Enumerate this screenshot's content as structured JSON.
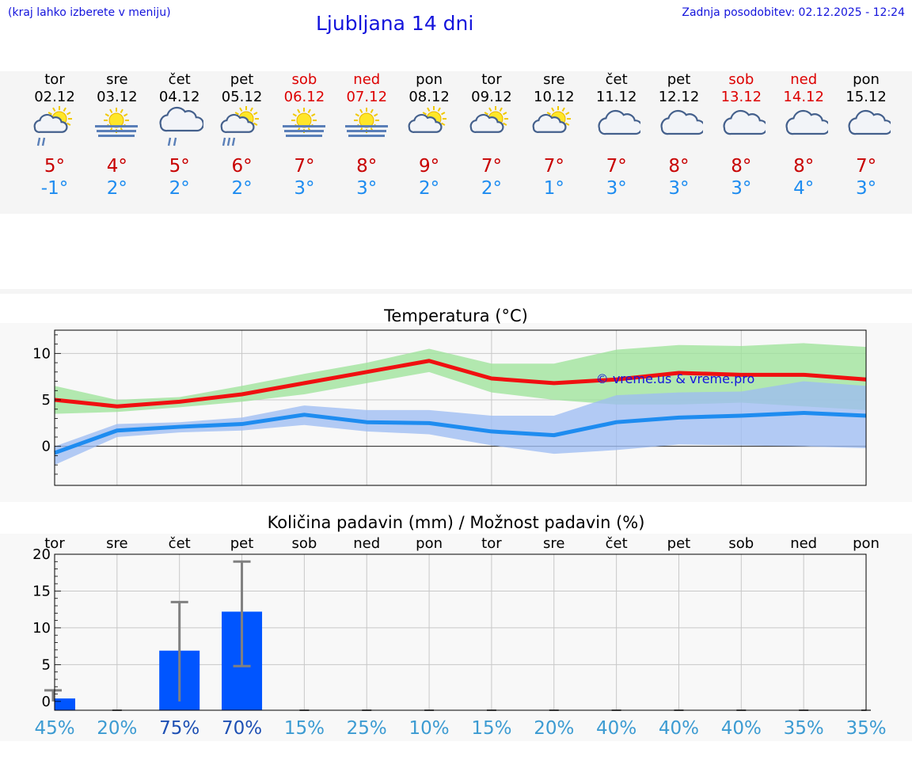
{
  "header": {
    "hint": "(kraj lahko izberete v meniju)",
    "title": "Ljubljana 14 dni",
    "updated": "Zadnja posodobitev: 02.12.2025 - 12:24"
  },
  "forecast": [
    {
      "day": "tor",
      "date": "02.12",
      "tmax": "5°",
      "tmin": "-1°",
      "icon": "sun-cloud-rain-icon",
      "weekend": false
    },
    {
      "day": "sre",
      "date": "03.12",
      "tmax": "4°",
      "tmin": "2°",
      "icon": "sun-fog-icon",
      "weekend": false
    },
    {
      "day": "čet",
      "date": "04.12",
      "tmax": "5°",
      "tmin": "2°",
      "icon": "cloud-rain-icon",
      "weekend": false
    },
    {
      "day": "pet",
      "date": "05.12",
      "tmax": "6°",
      "tmin": "2°",
      "icon": "sun-cloud-heavy-rain-icon",
      "weekend": false
    },
    {
      "day": "sob",
      "date": "06.12",
      "tmax": "7°",
      "tmin": "3°",
      "icon": "sun-fog-icon",
      "weekend": true
    },
    {
      "day": "ned",
      "date": "07.12",
      "tmax": "8°",
      "tmin": "3°",
      "icon": "sun-fog-icon",
      "weekend": true
    },
    {
      "day": "pon",
      "date": "08.12",
      "tmax": "9°",
      "tmin": "2°",
      "icon": "sun-cloud-icon",
      "weekend": false
    },
    {
      "day": "tor",
      "date": "09.12",
      "tmax": "7°",
      "tmin": "2°",
      "icon": "sun-cloud-icon",
      "weekend": false
    },
    {
      "day": "sre",
      "date": "10.12",
      "tmax": "7°",
      "tmin": "1°",
      "icon": "sun-cloud-icon",
      "weekend": false
    },
    {
      "day": "čet",
      "date": "11.12",
      "tmax": "7°",
      "tmin": "3°",
      "icon": "cloud-icon",
      "weekend": false
    },
    {
      "day": "pet",
      "date": "12.12",
      "tmax": "8°",
      "tmin": "3°",
      "icon": "cloud-icon",
      "weekend": false
    },
    {
      "day": "sob",
      "date": "13.12",
      "tmax": "8°",
      "tmin": "3°",
      "icon": "cloud-icon",
      "weekend": true
    },
    {
      "day": "ned",
      "date": "14.12",
      "tmax": "8°",
      "tmin": "4°",
      "icon": "cloud-icon",
      "weekend": true
    },
    {
      "day": "pon",
      "date": "15.12",
      "tmax": "7°",
      "tmin": "3°",
      "icon": "cloud-icon",
      "weekend": false
    }
  ],
  "chart_data": [
    {
      "type": "line",
      "title": "Temperatura (°C)",
      "watermark": "© vreme.us & vreme.pro",
      "ylim": [
        -4.2,
        12.5
      ],
      "yticks": [
        0,
        5,
        10
      ],
      "grid": true,
      "colors": {
        "max": "#f01010",
        "max_band": "#9ee39a",
        "min": "#1e8cf0",
        "min_band": "#9dbdf2"
      },
      "series": [
        {
          "values": [
            5.0,
            4.3,
            4.8,
            5.6,
            6.8,
            8.0,
            9.2,
            7.3,
            6.8,
            7.2,
            7.9,
            7.7,
            7.7,
            7.2
          ],
          "band_low": [
            3.5,
            3.7,
            4.2,
            4.8,
            5.6,
            6.8,
            8.0,
            5.8,
            5.0,
            4.5,
            4.5,
            4.7,
            4.3,
            3.9
          ],
          "band_high": [
            6.5,
            5.0,
            5.3,
            6.5,
            7.8,
            9.0,
            10.5,
            8.9,
            8.9,
            10.4,
            10.9,
            10.8,
            11.1,
            10.7
          ]
        },
        {
          "values": [
            -0.7,
            1.7,
            2.1,
            2.4,
            3.4,
            2.6,
            2.5,
            1.6,
            1.2,
            2.6,
            3.1,
            3.3,
            3.6,
            3.3
          ],
          "band_low": [
            -2.0,
            1.0,
            1.5,
            1.7,
            2.3,
            1.6,
            1.3,
            0.1,
            -0.8,
            -0.4,
            0.2,
            0.1,
            0.0,
            -0.2
          ],
          "band_high": [
            0.0,
            2.4,
            2.6,
            3.1,
            4.4,
            3.9,
            3.9,
            3.3,
            3.3,
            5.5,
            5.8,
            5.9,
            7.0,
            6.5
          ]
        }
      ]
    },
    {
      "type": "bar",
      "title": "Količina padavin (mm) / Možnost padavin (%)",
      "categories": [
        "tor",
        "sre",
        "čet",
        "pet",
        "sob",
        "ned",
        "pon",
        "tor",
        "sre",
        "čet",
        "pet",
        "sob",
        "ned",
        "pon"
      ],
      "values": [
        0.4,
        0,
        6.9,
        12.2,
        0,
        0,
        0,
        0,
        0,
        0,
        0,
        0,
        0,
        0
      ],
      "err_low": [
        0,
        0,
        0,
        4.8,
        0,
        0,
        0,
        0,
        0,
        0,
        0,
        0,
        0,
        0
      ],
      "err_high": [
        1.5,
        0,
        13.5,
        19.0,
        0,
        0,
        0,
        0,
        0,
        0,
        0,
        0,
        0,
        0
      ],
      "probability": [
        "45%",
        "20%",
        "75%",
        "70%",
        "15%",
        "25%",
        "10%",
        "15%",
        "20%",
        "40%",
        "40%",
        "40%",
        "35%",
        "35%"
      ],
      "ylim": [
        -1.2,
        20
      ],
      "yticks": [
        0,
        5,
        10,
        15,
        20
      ],
      "grid": true,
      "colors": {
        "bar": "#0055ff",
        "err": "#808080",
        "prob_high": "#1e50b4",
        "prob_low": "#3c9bd2"
      }
    }
  ]
}
